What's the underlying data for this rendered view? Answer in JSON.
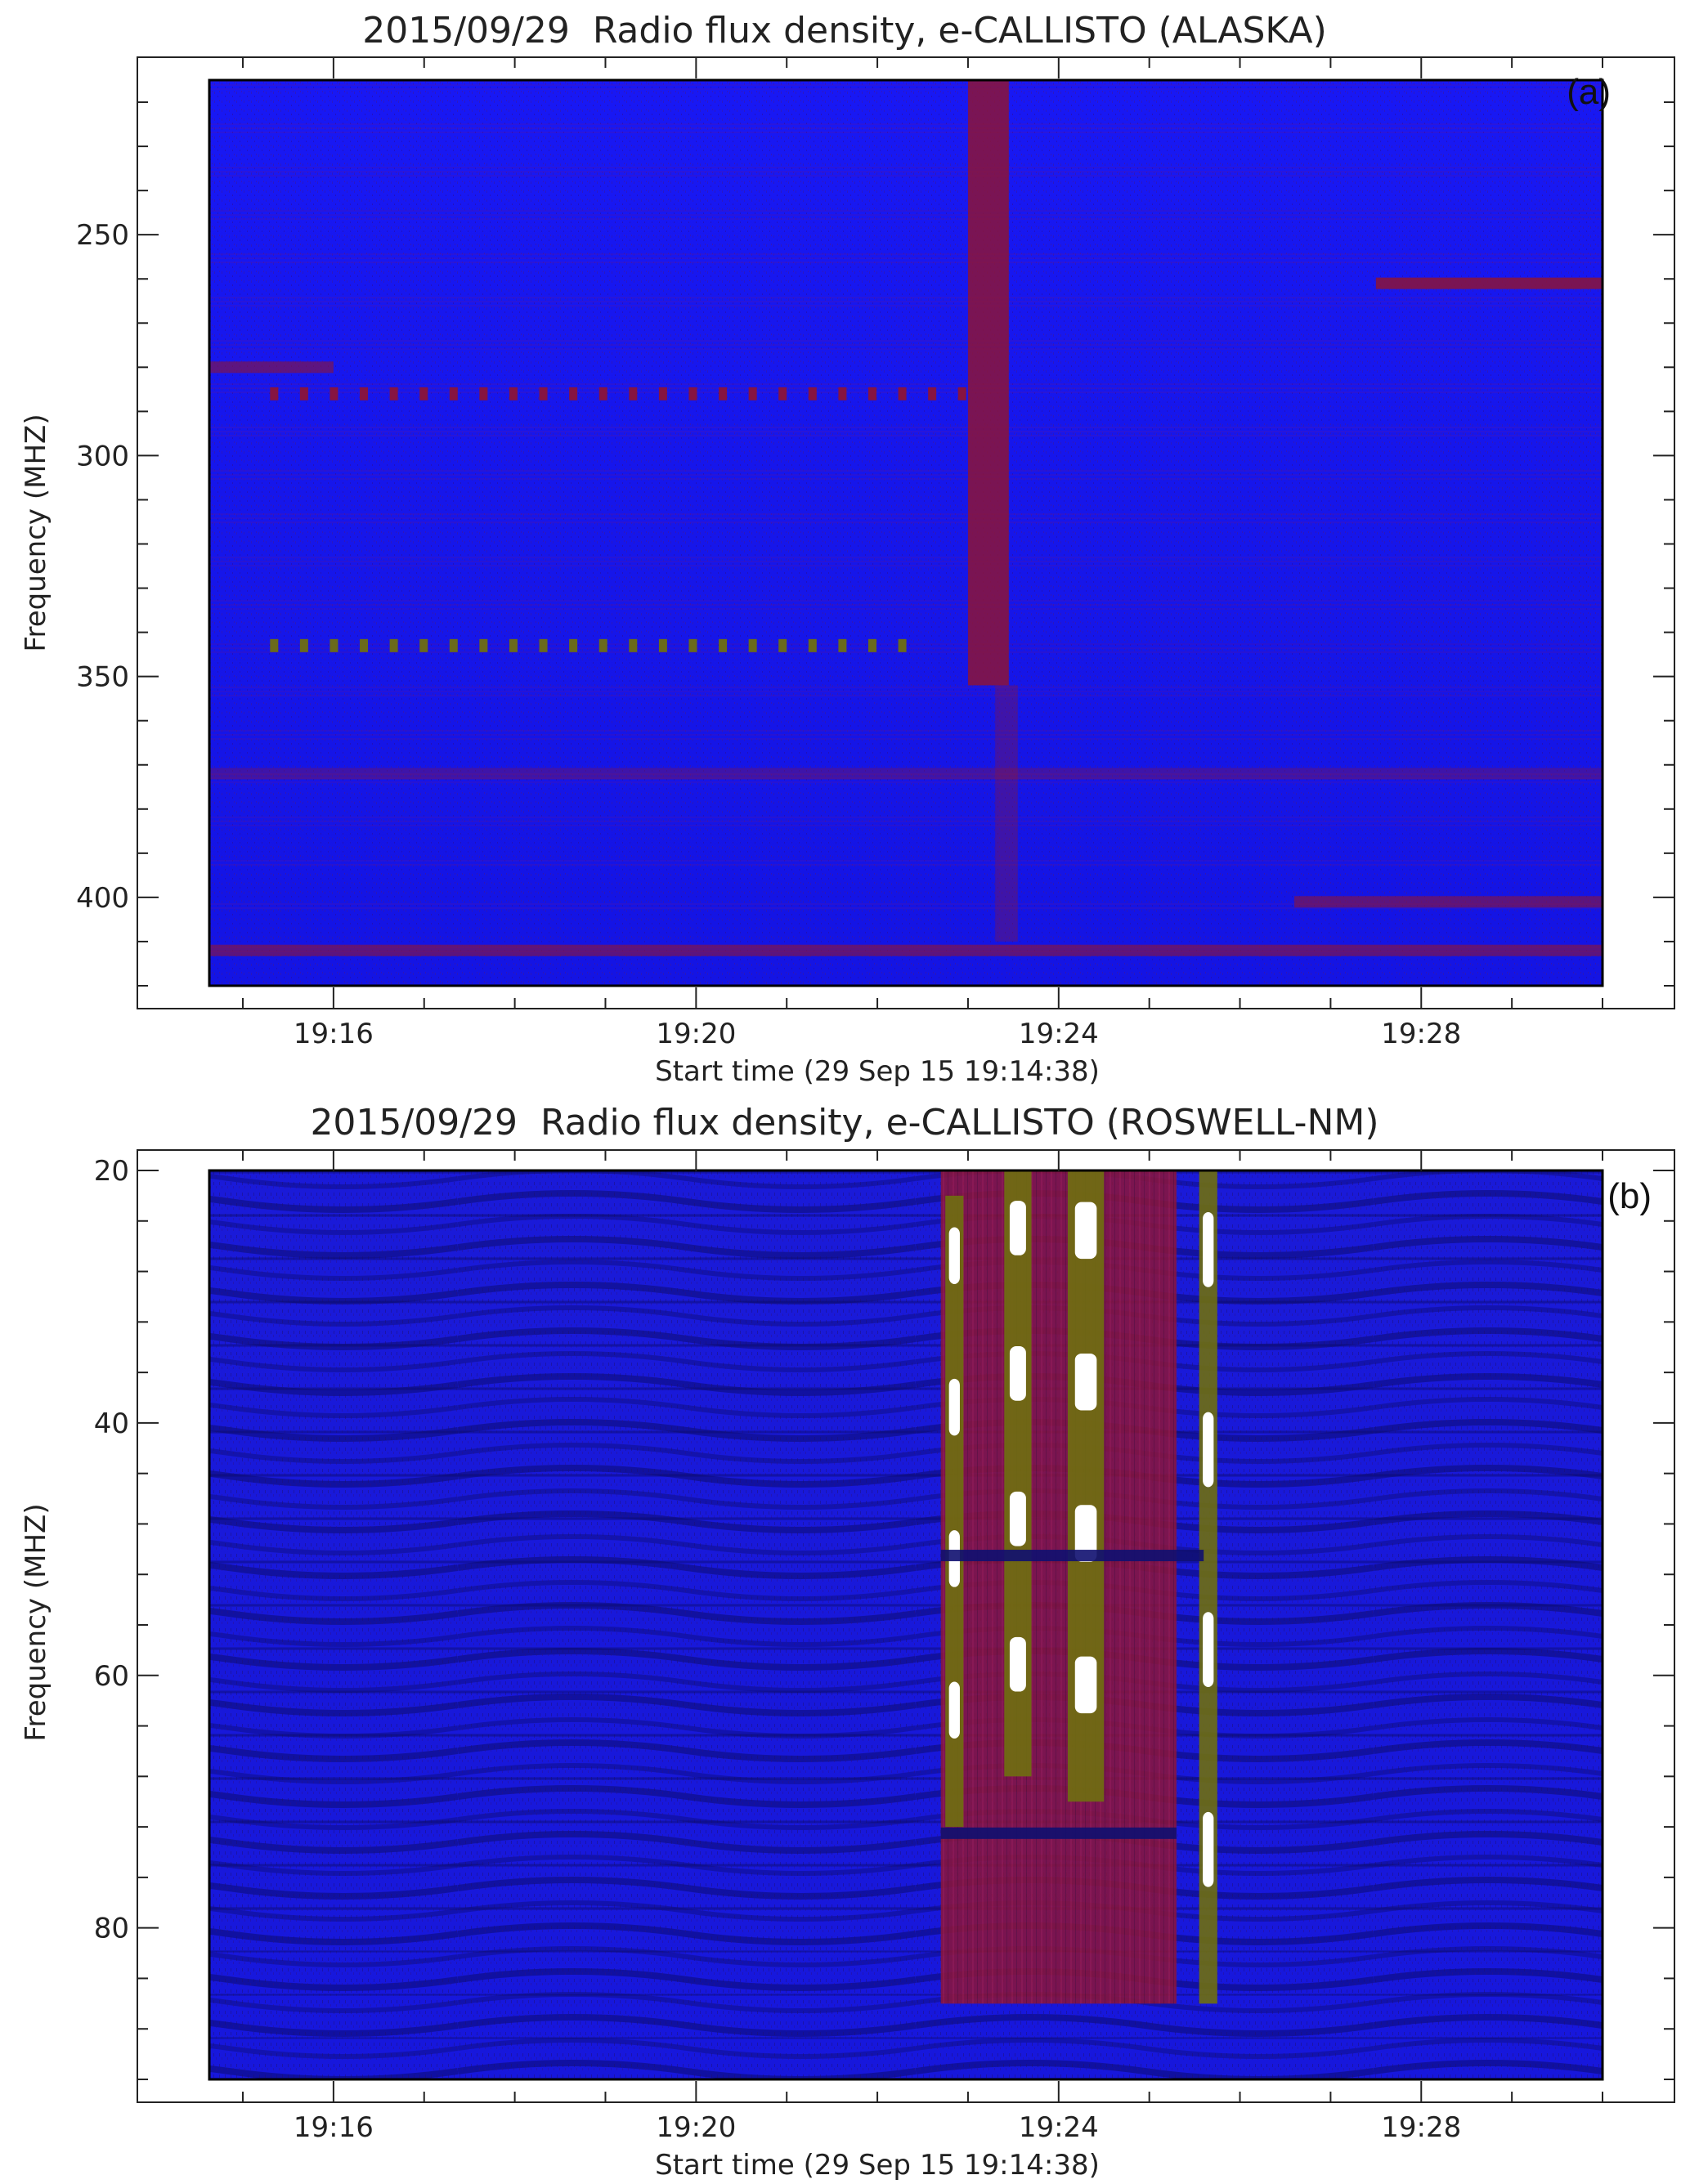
{
  "chart_data": [
    {
      "type": "heatmap",
      "title": "2015/09/29  Radio flux density, e-CALLISTO (ALASKA)",
      "panel_label": "(a)",
      "ylabel": "Frequency (MHZ)",
      "xlabel": "Start time (29 Sep 15 19:14:38)",
      "y_ticks": [
        250,
        300,
        350,
        400
      ],
      "y_tick_labels": [
        "250",
        "300",
        "350",
        "400"
      ],
      "y_range": [
        215,
        420
      ],
      "y_inverted": true,
      "x_ticks_minutes": [
        16,
        20,
        24,
        28
      ],
      "x_tick_labels": [
        "19:16",
        "19:20",
        "19:24",
        "19:28"
      ],
      "x_range_minutes": [
        14.63,
        30.0
      ],
      "colors": {
        "background": "#1414f0",
        "feature": "#8c1438",
        "intense": "#6f6f10",
        "peak": "#ffffff"
      },
      "features": [
        {
          "kind": "vertical_band",
          "t_start": 23.0,
          "t_end": 23.45,
          "f_start": 215,
          "f_end": 352,
          "intensity": "strong"
        },
        {
          "kind": "vertical_band",
          "t_start": 23.3,
          "t_end": 23.55,
          "f_start": 352,
          "f_end": 410,
          "intensity": "weak"
        },
        {
          "kind": "horizontal_band",
          "t_start": 27.5,
          "t_end": 30.0,
          "f_center": 261,
          "intensity": "strong"
        },
        {
          "kind": "horizontal_band",
          "t_start": 26.6,
          "t_end": 30.0,
          "f_center": 401,
          "intensity": "medium"
        },
        {
          "kind": "horizontal_band",
          "t_start": 14.63,
          "t_end": 30.0,
          "f_center": 372,
          "intensity": "weak"
        },
        {
          "kind": "horizontal_band",
          "t_start": 14.63,
          "t_end": 30.0,
          "f_center": 412,
          "intensity": "medium"
        },
        {
          "kind": "horizontal_band",
          "t_start": 14.63,
          "t_end": 16.0,
          "f_center": 280,
          "intensity": "medium"
        },
        {
          "kind": "dot_row",
          "t_start": 15.3,
          "t_end": 22.3,
          "f_center": 343,
          "intensity": "intense"
        },
        {
          "kind": "dot_row",
          "t_start": 15.3,
          "t_end": 23.0,
          "f_center": 286,
          "intensity": "strong"
        }
      ]
    },
    {
      "type": "heatmap",
      "title": "2015/09/29  Radio flux density, e-CALLISTO (ROSWELL-NM)",
      "panel_label": "(b)",
      "ylabel": "Frequency (MHZ)",
      "xlabel": "Start time (29 Sep 15 19:14:38)",
      "y_ticks": [
        20,
        40,
        60,
        80
      ],
      "y_tick_labels": [
        "20",
        "40",
        "60",
        "80"
      ],
      "y_range": [
        20,
        92
      ],
      "y_inverted": true,
      "x_ticks_minutes": [
        16,
        20,
        24,
        28
      ],
      "x_tick_labels": [
        "19:16",
        "19:20",
        "19:24",
        "19:28"
      ],
      "x_range_minutes": [
        14.63,
        30.0
      ],
      "colors": {
        "background": "#1414f0",
        "feature": "#8c1438",
        "intense": "#6f6f10",
        "peak": "#ffffff"
      },
      "features": [
        {
          "kind": "burst_region",
          "t_start": 22.7,
          "t_end": 25.3,
          "f_start": 20,
          "f_end": 86,
          "intensity": "strong"
        },
        {
          "kind": "burst_lane",
          "t_start": 22.75,
          "t_end": 22.95,
          "f_start": 22,
          "f_end": 72
        },
        {
          "kind": "burst_lane",
          "t_start": 23.4,
          "t_end": 23.7,
          "f_start": 20,
          "f_end": 68
        },
        {
          "kind": "burst_lane",
          "t_start": 24.1,
          "t_end": 24.5,
          "f_start": 20,
          "f_end": 70
        },
        {
          "kind": "burst_lane",
          "t_start": 25.55,
          "t_end": 25.75,
          "f_start": 20,
          "f_end": 86
        },
        {
          "kind": "horizontal_band",
          "t_start": 22.7,
          "t_end": 25.6,
          "f_center": 50.5,
          "intensity": "dark"
        },
        {
          "kind": "horizontal_band",
          "t_start": 22.7,
          "t_end": 25.3,
          "f_center": 72.5,
          "intensity": "dark"
        }
      ]
    }
  ]
}
